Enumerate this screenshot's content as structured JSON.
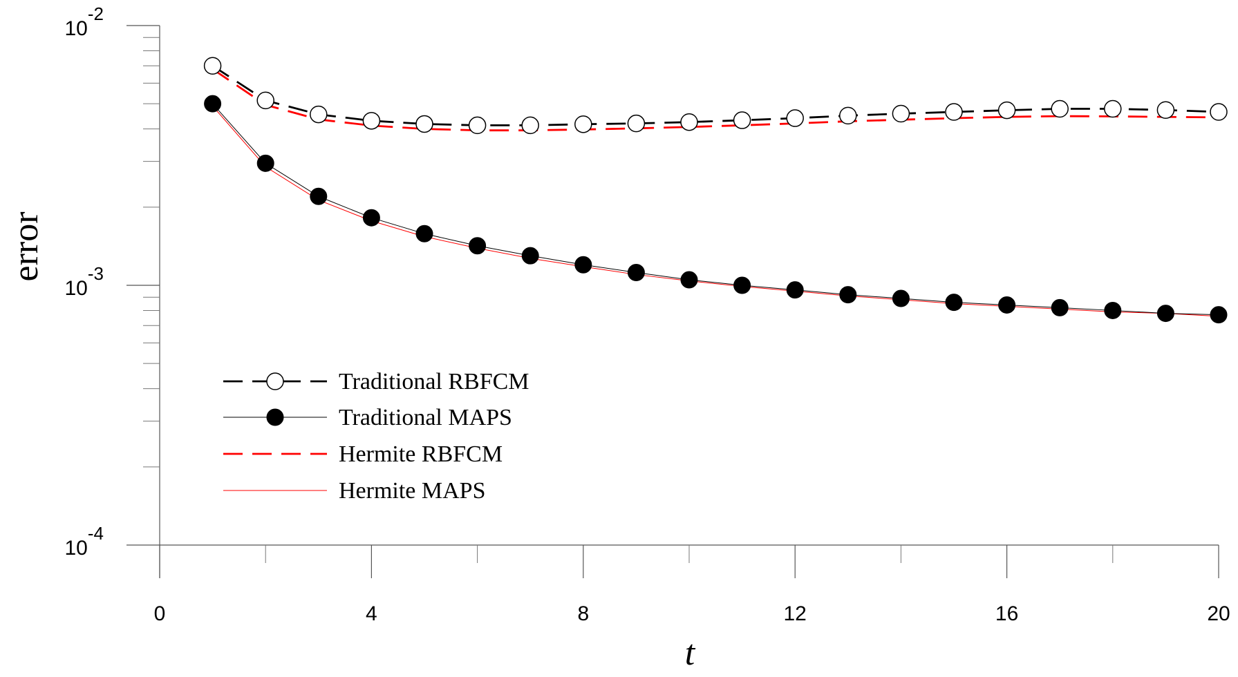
{
  "chart_data": {
    "type": "line",
    "title": "",
    "xlabel": "t",
    "ylabel": "error",
    "yscale": "log",
    "xlim": [
      0,
      20
    ],
    "ylim": [
      0.0001,
      0.01
    ],
    "x_ticks": [
      0,
      4,
      8,
      12,
      16,
      20
    ],
    "x_tick_labels": [
      "0",
      "4",
      "8",
      "12",
      "16",
      "20"
    ],
    "y_ticks": [
      {
        "value": 0.01,
        "base": "10",
        "exp": "-2"
      },
      {
        "value": 0.001,
        "base": "10",
        "exp": "-3"
      },
      {
        "value": 0.0001,
        "base": "10",
        "exp": "-4"
      }
    ],
    "grid": false,
    "legend_position": "lower-left",
    "x": [
      1,
      2,
      3,
      4,
      5,
      6,
      7,
      8,
      9,
      10,
      11,
      12,
      13,
      14,
      15,
      16,
      17,
      18,
      19,
      20
    ],
    "series": [
      {
        "name": "Traditional RBFCM",
        "color": "#000000",
        "line": "dashed",
        "marker": "open-circle",
        "values": [
          0.007,
          0.00515,
          0.00455,
          0.0043,
          0.00418,
          0.00413,
          0.00413,
          0.00417,
          0.0042,
          0.00425,
          0.00432,
          0.0044,
          0.0045,
          0.00458,
          0.00465,
          0.00472,
          0.00478,
          0.00478,
          0.00473,
          0.00465
        ]
      },
      {
        "name": "Traditional MAPS",
        "color": "#000000",
        "line": "solid",
        "marker": "filled-circle",
        "values": [
          0.005,
          0.00295,
          0.0022,
          0.00182,
          0.00158,
          0.00142,
          0.0013,
          0.0012,
          0.00112,
          0.00105,
          0.001,
          0.00096,
          0.00092,
          0.00089,
          0.00086,
          0.00084,
          0.00082,
          0.0008,
          0.00078,
          0.00077
        ]
      },
      {
        "name": "Hermite RBFCM",
        "color": "#ff0000",
        "line": "dashed",
        "marker": "none",
        "values": [
          0.0068,
          0.00495,
          0.00435,
          0.00412,
          0.004,
          0.00395,
          0.00395,
          0.00398,
          0.00402,
          0.00407,
          0.00413,
          0.0042,
          0.00428,
          0.00434,
          0.0044,
          0.00445,
          0.00448,
          0.00447,
          0.00445,
          0.00443
        ]
      },
      {
        "name": "Hermite MAPS",
        "color": "#ff0000",
        "line": "solid",
        "marker": "none",
        "values": [
          0.0049,
          0.00286,
          0.00213,
          0.00177,
          0.00154,
          0.00139,
          0.00127,
          0.00118,
          0.0011,
          0.00104,
          0.00099,
          0.00095,
          0.00091,
          0.00088,
          0.00085,
          0.00083,
          0.00081,
          0.00079,
          0.00078,
          0.00076
        ]
      }
    ]
  }
}
